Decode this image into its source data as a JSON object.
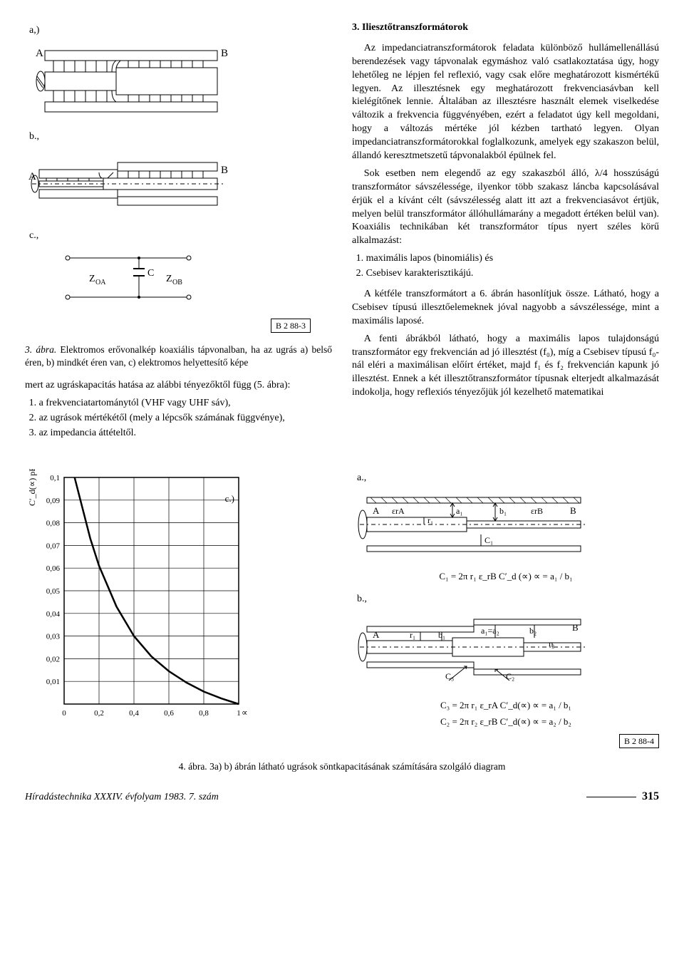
{
  "figures": {
    "fig3": {
      "panel_a": "a,)",
      "panel_b": "b.,",
      "panel_c": "c.,",
      "A": "A",
      "B": "B",
      "ZOA": "Z",
      "ZOA_sub": "OA",
      "ZOB": "Z",
      "ZOB_sub": "OB",
      "C": "C",
      "box": "B 2 88-3",
      "caption_lead": "3. ábra. ",
      "caption_body": "Elektromos erővonalkép koaxiális tápvonalban, ha az ugrás a) belső éren, b) mindkét éren van, c) elektromos helyettesítő képe"
    },
    "fig4": {
      "panel_a": "a.,",
      "panel_b": "b.,",
      "panel_c": "c.,",
      "box": "B 2 88-4",
      "caption_lead": "4. ábra. ",
      "caption_body": "3a) b) ábrán látható ugrások söntkapacitásának számítására szolgáló diagram"
    }
  },
  "chart": {
    "type": "line",
    "ylabel": "C′_d(∝) pF",
    "xlabel": "∝",
    "xlim": [
      0,
      1
    ],
    "ylim": [
      0,
      0.1
    ],
    "yticks": [
      "0,1",
      "0,09",
      "0,08",
      "0,07",
      "0,06",
      "0,05",
      "0,04",
      "0,03",
      "0,02",
      "0,01"
    ],
    "xtick_labels": [
      "0",
      "0,2",
      "0,4",
      "0,6",
      "0,8",
      "1"
    ],
    "curve": [
      {
        "x": 0.06,
        "y": 0.1
      },
      {
        "x": 0.1,
        "y": 0.088
      },
      {
        "x": 0.15,
        "y": 0.073
      },
      {
        "x": 0.2,
        "y": 0.061
      },
      {
        "x": 0.3,
        "y": 0.043
      },
      {
        "x": 0.4,
        "y": 0.03
      },
      {
        "x": 0.5,
        "y": 0.021
      },
      {
        "x": 0.6,
        "y": 0.0145
      },
      {
        "x": 0.7,
        "y": 0.0095
      },
      {
        "x": 0.8,
        "y": 0.0055
      },
      {
        "x": 0.9,
        "y": 0.0025
      },
      {
        "x": 1.0,
        "y": 0.0
      }
    ],
    "line_color": "#000000",
    "line_width": 2.5,
    "grid_color": "#000000",
    "background_color": "#ffffff",
    "label_fontsize": 12,
    "tick_fontsize": 11
  },
  "schematic_a": {
    "A": "A",
    "B": "B",
    "erA": "εrA",
    "erB": "εrB",
    "a1": "a₁",
    "b1": "b₁",
    "r1": "r₁",
    "C1": "C₁",
    "formula": "C₁ = 2π r₁ ε_rB C′_d (∝)    ∝ = a₁ / b₁"
  },
  "schematic_b": {
    "A": "A",
    "B": "B",
    "r1": "r₁",
    "b1": "b₁",
    "a1a2": "a₁=a₂",
    "b2": "b₂",
    "r2": "r₂",
    "C2": "C₂",
    "C3": "C₃",
    "formula1": "C₃ = 2π r₁ ε_rA C′_d(∝)    ∝ = a₁ / b₁",
    "formula2": "C₂ = 2π r₂  ε_rB C′_d(∝)    ∝ = a₂ / b₂"
  },
  "left_text": {
    "p1": "mert az ugráskapacitás hatása az alábbi tényezőktől függ ",
    "p1_it": "(5. ábra):",
    "li1": "a frekvenciatartománytól (VHF vagy UHF sáv),",
    "li2": "az ugrások mértékétől (mely a lépcsők számának függvénye),",
    "li3": "az impedancia áttételtől."
  },
  "right_text": {
    "title": "3. Iliesztőtranszformátorok",
    "p1": "Az impedanciatranszformátorok feladata különböző hullámellenállású berendezések vagy tápvonalak egymáshoz való csatlakoztatása úgy, hogy lehetőleg ne lépjen fel reflexió, vagy csak előre meghatározott kismértékű legyen. Az illesztésnek egy meghatározott frekvenciasávban kell kielégítőnek lennie. Általában az illesztésre használt elemek viselkedése változik a frekvencia függvényében, ezért a feladatot úgy kell megoldani, hogy a változás mértéke jól kézben tartható legyen. Olyan impedanciatranszformátorokkal foglalkozunk, amelyek egy szakaszon belül, állandó keresztmetszetű tápvonalakból épülnek fel.",
    "p2": "Sok esetben nem elegendő az egy szakaszból álló, λ/4 hosszúságú transzformátor sávszélessége, ilyenkor több szakasz láncba kapcsolásával érjük el a kívánt célt (sávszélesség alatt itt azt a frekvenciasávot értjük, melyen belül transzformátor állóhullámarány a megadott értéken belül van). Koaxiális technikában két transzformátor típus nyert széles körű alkalmazást:",
    "li1": "maximális lapos (binomiális) és",
    "li2": "Csebisev karakterisztikájú.",
    "p3a": "A kétféle transzformátort a ",
    "p3_it": "6. ábrán",
    "p3b": " hasonlítjuk össze. Látható, hogy a Csebisev típusú illesztőelemeknek jóval nagyobb a sávszélessége, mint a maximális laposé.",
    "p4": "A fenti ábrákból látható, hogy a maximális lapos tulajdonságú transzformátor egy frekvencián ad jó illesztést (f₀), míg a Csebisev típusú f₀-nál eléri a maximálisan előírt értéket, majd f₁ és f₂ frekvencián kapunk jó illesztést. Ennek a két illesztőtranszformátor típusnak elterjedt alkalmazását indokolja, hogy reflexiós tényezőjük jól kezelhető matematikai"
  },
  "footer": {
    "journal": "Híradástechnika XXXIV. évfolyam 1983. 7. szám",
    "page": "315"
  }
}
